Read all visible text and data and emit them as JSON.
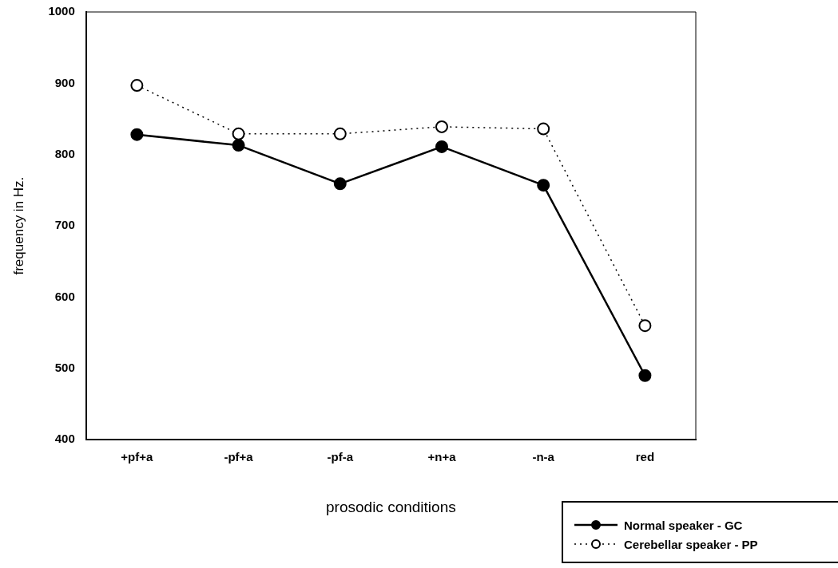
{
  "chart_data": {
    "type": "line",
    "xlabel": "prosodic conditions",
    "ylabel": "frequency in Hz.",
    "categories": [
      "+pf+a",
      "-pf+a",
      "-pf-a",
      "+n+a",
      "-n-a",
      "red"
    ],
    "series": [
      {
        "name": "Normal speaker - GC",
        "color": "#000000",
        "marker": "circle",
        "line_style": "solid",
        "values": [
          828,
          813,
          759,
          811,
          757,
          490
        ]
      },
      {
        "name": "Cerebellar speaker - PP",
        "color": "#000000",
        "marker": "circle",
        "line_style": "dotted",
        "values": [
          897,
          829,
          829,
          839,
          836,
          560
        ]
      }
    ],
    "ylim": [
      400,
      1000
    ],
    "yticks": [
      400,
      500,
      600,
      700,
      800,
      900,
      1000
    ],
    "grid": false,
    "legend": "bottom right"
  }
}
